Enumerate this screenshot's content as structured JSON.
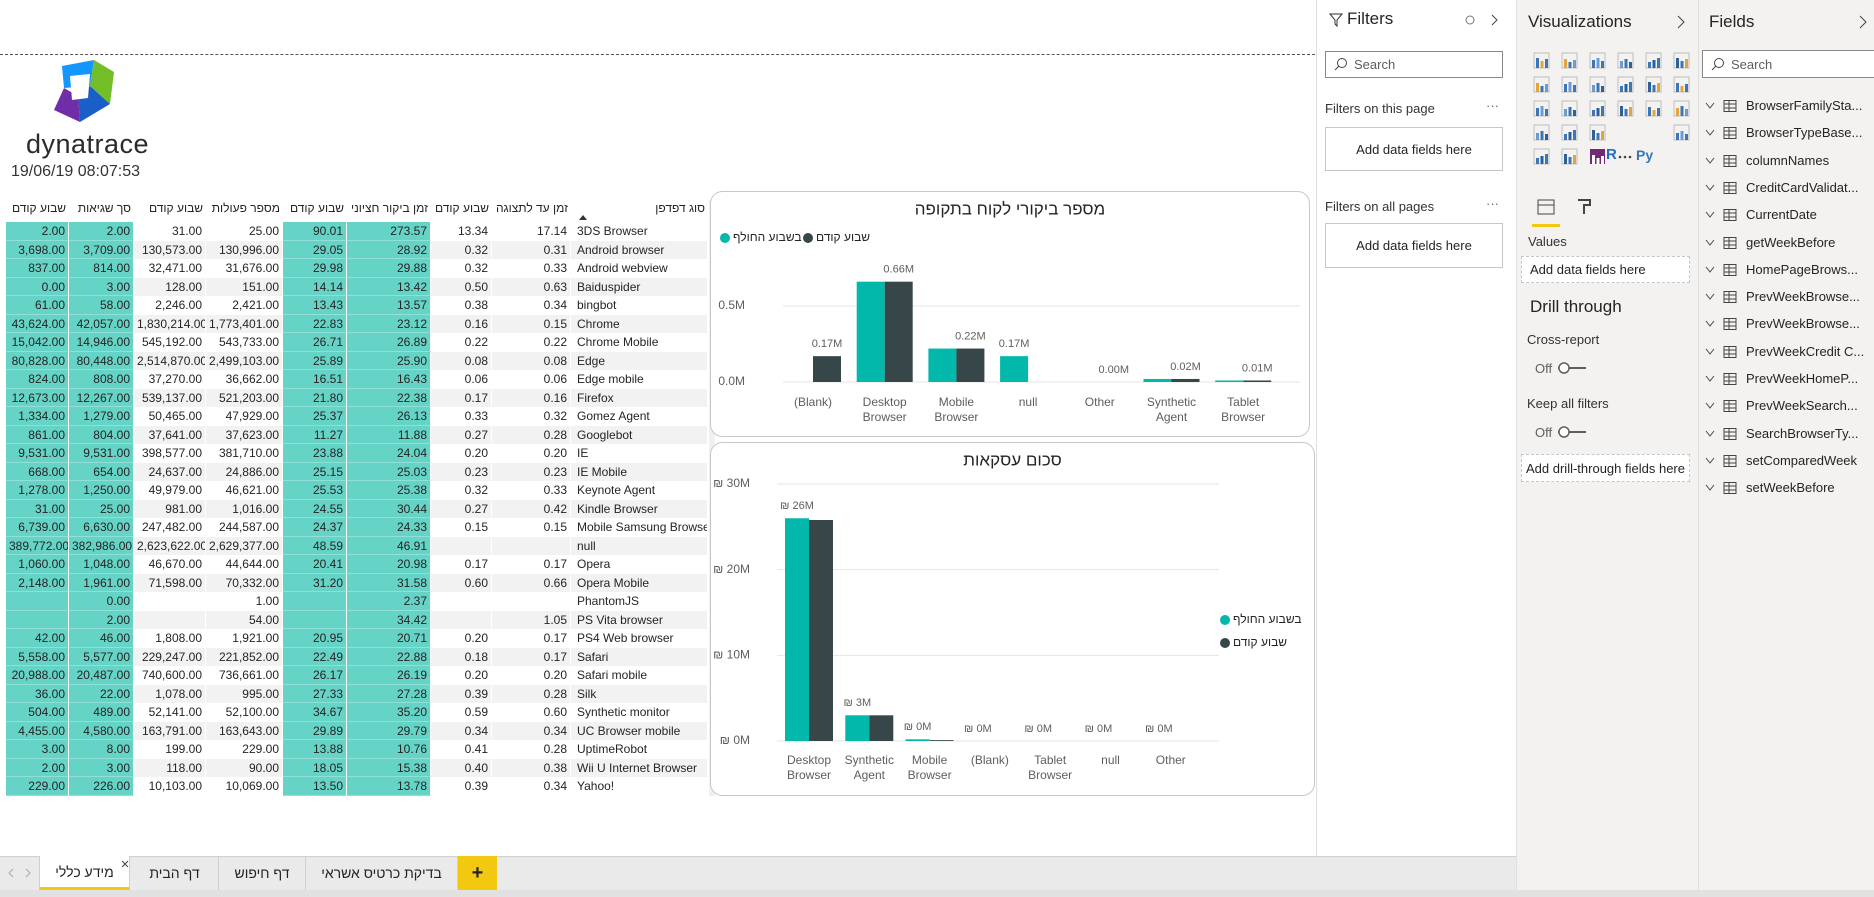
{
  "header": {
    "logo_text": "dynatrace",
    "timestamp": "19/06/19 08:07:53"
  },
  "table": {
    "columns": [
      "שבוע קודם",
      "סך שגיאות",
      "שבוע קודם",
      "מספר פעולות",
      "שבוע קודם",
      "זמן ביקור חציוני",
      "שבוע קודם",
      "זמן עד לתצוגה",
      "סוג דפדפן"
    ],
    "rows": [
      [
        "2.00",
        "2.00",
        "31.00",
        "25.00",
        "90.01",
        "273.57",
        "13.34",
        "17.14",
        "3DS Browser"
      ],
      [
        "3,698.00",
        "3,709.00",
        "130,573.00",
        "130,996.00",
        "29.05",
        "28.92",
        "0.32",
        "0.31",
        "Android browser"
      ],
      [
        "837.00",
        "814.00",
        "32,471.00",
        "31,676.00",
        "29.98",
        "29.88",
        "0.32",
        "0.33",
        "Android webview"
      ],
      [
        "0.00",
        "3.00",
        "128.00",
        "151.00",
        "14.14",
        "13.42",
        "0.50",
        "0.63",
        "Baiduspider"
      ],
      [
        "61.00",
        "58.00",
        "2,246.00",
        "2,421.00",
        "13.43",
        "13.57",
        "0.38",
        "0.34",
        "bingbot"
      ],
      [
        "43,624.00",
        "42,057.00",
        "1,830,214.00",
        "1,773,401.00",
        "22.83",
        "23.12",
        "0.16",
        "0.15",
        "Chrome"
      ],
      [
        "15,042.00",
        "14,946.00",
        "545,192.00",
        "543,733.00",
        "26.71",
        "26.89",
        "0.22",
        "0.22",
        "Chrome Mobile"
      ],
      [
        "80,828.00",
        "80,448.00",
        "2,514,870.00",
        "2,499,103.00",
        "25.89",
        "25.90",
        "0.08",
        "0.08",
        "Edge"
      ],
      [
        "824.00",
        "808.00",
        "37,270.00",
        "36,662.00",
        "16.51",
        "16.43",
        "0.06",
        "0.06",
        "Edge mobile"
      ],
      [
        "12,673.00",
        "12,267.00",
        "539,137.00",
        "521,203.00",
        "21.80",
        "22.38",
        "0.17",
        "0.16",
        "Firefox"
      ],
      [
        "1,334.00",
        "1,279.00",
        "50,465.00",
        "47,929.00",
        "25.37",
        "26.13",
        "0.33",
        "0.32",
        "Gomez Agent"
      ],
      [
        "861.00",
        "804.00",
        "37,641.00",
        "37,623.00",
        "11.27",
        "11.88",
        "0.27",
        "0.28",
        "Googlebot"
      ],
      [
        "9,531.00",
        "9,531.00",
        "398,577.00",
        "381,710.00",
        "23.88",
        "24.04",
        "0.20",
        "0.20",
        "IE"
      ],
      [
        "668.00",
        "654.00",
        "24,637.00",
        "24,886.00",
        "25.15",
        "25.03",
        "0.23",
        "0.23",
        "IE Mobile"
      ],
      [
        "1,278.00",
        "1,250.00",
        "49,979.00",
        "46,621.00",
        "25.53",
        "25.38",
        "0.32",
        "0.33",
        "Keynote Agent"
      ],
      [
        "31.00",
        "25.00",
        "981.00",
        "1,016.00",
        "24.55",
        "30.44",
        "0.27",
        "0.42",
        "Kindle Browser"
      ],
      [
        "6,739.00",
        "6,630.00",
        "247,482.00",
        "244,587.00",
        "24.37",
        "24.33",
        "0.15",
        "0.15",
        "Mobile Samsung Browser"
      ],
      [
        "389,772.00",
        "382,986.00",
        "2,623,622.00",
        "2,629,377.00",
        "48.59",
        "46.91",
        null,
        null,
        "null"
      ],
      [
        "1,060.00",
        "1,048.00",
        "46,670.00",
        "44,644.00",
        "20.41",
        "20.98",
        "0.17",
        "0.17",
        "Opera"
      ],
      [
        "2,148.00",
        "1,961.00",
        "71,598.00",
        "70,332.00",
        "31.20",
        "31.58",
        "0.60",
        "0.66",
        "Opera Mobile"
      ],
      [
        null,
        "0.00",
        null,
        "1.00",
        null,
        "2.37",
        null,
        null,
        "PhantomJS"
      ],
      [
        null,
        "2.00",
        null,
        "54.00",
        null,
        "34.42",
        null,
        "1.05",
        "PS Vita browser"
      ],
      [
        "42.00",
        "46.00",
        "1,808.00",
        "1,921.00",
        "20.95",
        "20.71",
        "0.20",
        "0.17",
        "PS4 Web browser"
      ],
      [
        "5,558.00",
        "5,577.00",
        "229,247.00",
        "221,852.00",
        "22.49",
        "22.88",
        "0.18",
        "0.17",
        "Safari"
      ],
      [
        "20,988.00",
        "20,487.00",
        "740,600.00",
        "736,661.00",
        "26.17",
        "26.19",
        "0.20",
        "0.20",
        "Safari mobile"
      ],
      [
        "36.00",
        "22.00",
        "1,078.00",
        "995.00",
        "27.33",
        "27.28",
        "0.39",
        "0.28",
        "Silk"
      ],
      [
        "504.00",
        "489.00",
        "52,141.00",
        "52,100.00",
        "34.67",
        "35.20",
        "0.59",
        "0.60",
        "Synthetic monitor"
      ],
      [
        "4,455.00",
        "4,580.00",
        "163,791.00",
        "163,643.00",
        "29.89",
        "29.79",
        "0.34",
        "0.34",
        "UC Browser mobile"
      ],
      [
        "3.00",
        "8.00",
        "199.00",
        "229.00",
        "13.88",
        "10.76",
        "0.41",
        "0.28",
        "UptimeRobot"
      ],
      [
        "2.00",
        "3.00",
        "118.00",
        "90.00",
        "18.05",
        "15.38",
        "0.40",
        "0.38",
        "Wii U Internet Browser"
      ],
      [
        "229.00",
        "226.00",
        "10,103.00",
        "10,069.00",
        "13.50",
        "13.78",
        "0.39",
        "0.34",
        "Yahoo!"
      ]
    ]
  },
  "chart_data": [
    {
      "type": "bar",
      "title": "מספר ביקורי לקוח בתקופה",
      "categories": [
        "(Blank)",
        "Desktop Browser",
        "Mobile Browser",
        "null",
        "Other",
        "Synthetic Agent",
        "Tablet Browser"
      ],
      "series": [
        {
          "name": "בשבוע החולף",
          "color": "#01b8aa",
          "values": [
            null,
            0.66,
            0.22,
            0.17,
            0,
            0.02,
            0.01
          ],
          "value_labels": [
            null,
            null,
            null,
            "0.17M",
            null,
            null,
            null
          ]
        },
        {
          "name": "שבוע קודם",
          "color": "#374649",
          "values": [
            0.17,
            0.66,
            0.22,
            null,
            0,
            0.02,
            0.01
          ],
          "value_labels": [
            "0.17M",
            "0.66M",
            "0.22M",
            null,
            "0.00M",
            "0.02M",
            "0.01M"
          ]
        }
      ],
      "ylim": [
        0,
        0.7
      ],
      "yticks": [
        {
          "value": 0,
          "label": "0.0M"
        },
        {
          "value": 0.5,
          "label": "0.5M"
        }
      ],
      "grid": true,
      "legend": "top-left"
    },
    {
      "type": "bar",
      "title": "סכום עסקאות",
      "categories": [
        "Desktop Browser",
        "Synthetic Agent",
        "Mobile Browser",
        "(Blank)",
        "Tablet Browser",
        "null",
        "Other"
      ],
      "series": [
        {
          "name": "בשבוע החולף",
          "color": "#01b8aa",
          "values": [
            26,
            3,
            0.2,
            0,
            0,
            0,
            0
          ],
          "value_labels": [
            "₪ 26M",
            "₪ 3M",
            "₪ 0M",
            "₪ 0M",
            "₪ 0M",
            "₪ 0M",
            "₪ 0M"
          ]
        },
        {
          "name": "שבוע קודם",
          "color": "#374649",
          "values": [
            25.8,
            3,
            0.1,
            0,
            0,
            0,
            0
          ]
        }
      ],
      "ylim": [
        0,
        30
      ],
      "yticks": [
        {
          "value": 0,
          "label": "₪ 0M"
        },
        {
          "value": 10,
          "label": "₪ 10M"
        },
        {
          "value": 20,
          "label": "₪ 20M"
        },
        {
          "value": 30,
          "label": "₪ 30M"
        }
      ],
      "grid": true,
      "legend": "right"
    }
  ],
  "filters": {
    "title": "Filters",
    "search": "Search",
    "on_this_page": "Filters on this page",
    "on_this_page_placeholder": "Add data fields here",
    "on_all_pages": "Filters on all pages",
    "on_all_pages_placeholder": "Add data fields here"
  },
  "visualizations": {
    "title": "Visualizations",
    "r_visual": "R",
    "python_visual": "Py",
    "values_label": "Values",
    "values_placeholder": "Add data fields here",
    "drill_through": "Drill through",
    "cross_report": "Cross-report",
    "cross_report_state": "Off",
    "keep_all_filters": "Keep all filters",
    "keep_all_filters_state": "Off",
    "drill_placeholder": "Add drill-through fields here"
  },
  "fields": {
    "title": "Fields",
    "search": "Search",
    "items": [
      "BrowserFamilySta...",
      "BrowserTypeBase...",
      "columnNames",
      "CreditCardValidat...",
      "CurrentDate",
      "getWeekBefore",
      "HomePageBrows...",
      "PrevWeekBrowse...",
      "PrevWeekBrowse...",
      "PrevWeekCredit C...",
      "PrevWeekHomeP...",
      "PrevWeekSearch...",
      "SearchBrowserTy...",
      "setComparedWeek",
      "setWeekBefore"
    ]
  },
  "tabs": [
    "מידע כללי",
    "דף הבית",
    "דף חיפוש",
    "בדיקת כרטיס אשראי"
  ],
  "new_tab": "+"
}
